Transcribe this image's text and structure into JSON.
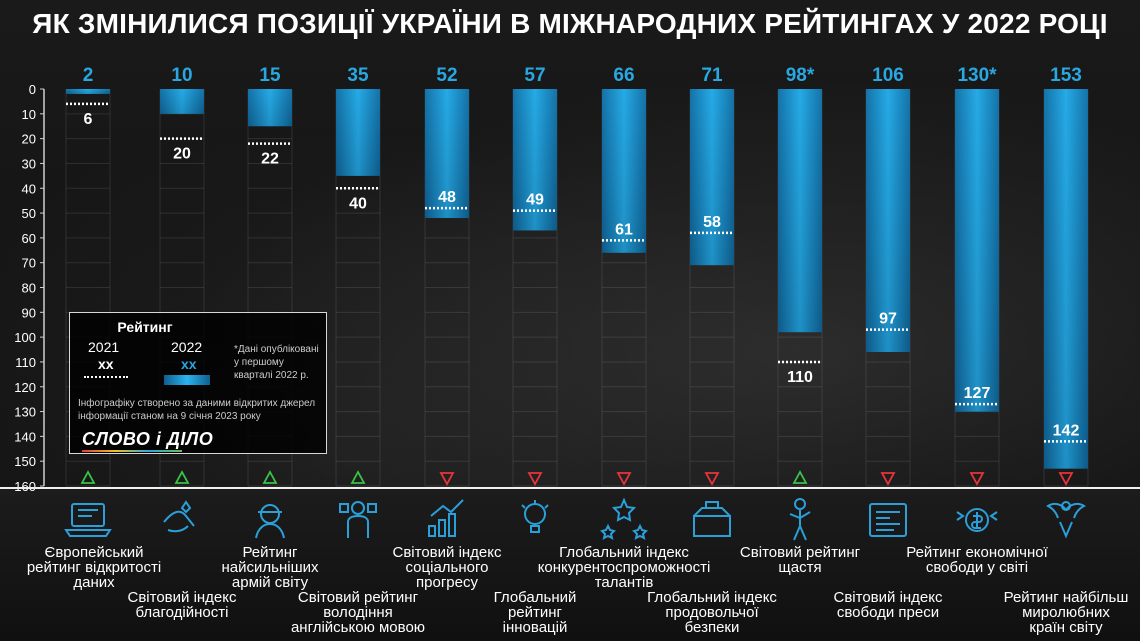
{
  "title": "ЯК ЗМІНИЛИСЯ ПОЗИЦІЇ УКРАЇНИ В МІЖНАРОДНИХ РЕЙТИНГАХ У 2022 РОЦІ",
  "colors": {
    "bar": "#29a7e1",
    "up": "#39c448",
    "down": "#e8343b",
    "value": "#29a7e1"
  },
  "chart_data": {
    "type": "bar",
    "yaxis": {
      "reversed": true,
      "ticks": [
        0,
        10,
        20,
        30,
        40,
        50,
        60,
        70,
        80,
        90,
        100,
        110,
        120,
        130,
        140,
        150,
        160
      ],
      "ylim": [
        0,
        160
      ]
    },
    "categories": [
      "Європейський рейтинг відкритості даних",
      "Світовий індекс благодійності",
      "Рейтинг найсильніших армій світу",
      "Світовий рейтинг володіння англійською мовою",
      "Світовий індекс соціального прогресу",
      "Глобальний рейтинг інновацій",
      "Глобальний індекс конкурентоспроможності талантів",
      "Глобальний індекс продовольчої безпеки",
      "Світовий рейтинг щастя",
      "Світовий індекс свободи преси",
      "Рейтинг економічної свободи у світі",
      "Рейтинг найбільш миролюбних країн світу"
    ],
    "series": [
      {
        "name": "2022",
        "values": [
          2,
          10,
          15,
          35,
          52,
          57,
          66,
          71,
          98,
          106,
          130,
          153
        ],
        "labels": [
          "2",
          "10",
          "15",
          "35",
          "52",
          "57",
          "66",
          "71",
          "98*",
          "106",
          "130*",
          "153"
        ]
      },
      {
        "name": "2021",
        "values": [
          6,
          20,
          22,
          40,
          48,
          49,
          61,
          58,
          110,
          97,
          127,
          142
        ],
        "labels": [
          "6",
          "20",
          "22",
          "40",
          "48",
          "49",
          "61",
          "58",
          "110",
          "97",
          "127",
          "142"
        ]
      }
    ],
    "trend": [
      "up",
      "up",
      "up",
      "up",
      "down",
      "down",
      "down",
      "down",
      "up",
      "down",
      "down",
      "down"
    ]
  },
  "icons": [
    "laptop-data-icon",
    "charity-hands-icon",
    "soldier-icon",
    "english-speaker-icon",
    "money-growth-icon",
    "innovation-bulb-icon",
    "talent-stars-icon",
    "food-boxes-icon",
    "happy-person-icon",
    "newspaper-icon",
    "economic-freedom-icon",
    "peace-dove-icon"
  ],
  "labels": [
    {
      "lines": [
        "Європейський",
        "рейтинг відкритості",
        "даних"
      ]
    },
    {
      "lines": [
        "Світовий індекс",
        "благодійності"
      ]
    },
    {
      "lines": [
        "Рейтинг",
        "найсильніших",
        "армій світу"
      ]
    },
    {
      "lines": [
        "Світовий рейтинг",
        "володіння",
        "англійською мовою"
      ]
    },
    {
      "lines": [
        "Світовий індекс",
        "соціального",
        "прогресу"
      ]
    },
    {
      "lines": [
        "Глобальний",
        "рейтинг",
        "інновацій"
      ]
    },
    {
      "lines": [
        "Глобальний індекс",
        "конкурентоспроможності",
        "талантів"
      ]
    },
    {
      "lines": [
        "Глобальний індекс",
        "продовольчої",
        "безпеки"
      ]
    },
    {
      "lines": [
        "Світовий рейтинг",
        "щастя"
      ]
    },
    {
      "lines": [
        "Світовий індекс",
        "свободи преси"
      ]
    },
    {
      "lines": [
        "Рейтинг економічної",
        "свободи у світі"
      ]
    },
    {
      "lines": [
        "Рейтинг найбільш",
        "миролюбних",
        "країн світу"
      ]
    }
  ],
  "legend": {
    "title": "Рейтинг",
    "year_2021": "2021",
    "year_2022": "2022",
    "sample_2021": "xx",
    "sample_2022": "xx",
    "note": "*Дані опубліковані у першому кварталі 2022 р.",
    "source": "Інфографіку створено за даними відкритих джерел інформації станом на 9 січня 2023 року",
    "logo": "СЛОВО і ДІЛО"
  }
}
